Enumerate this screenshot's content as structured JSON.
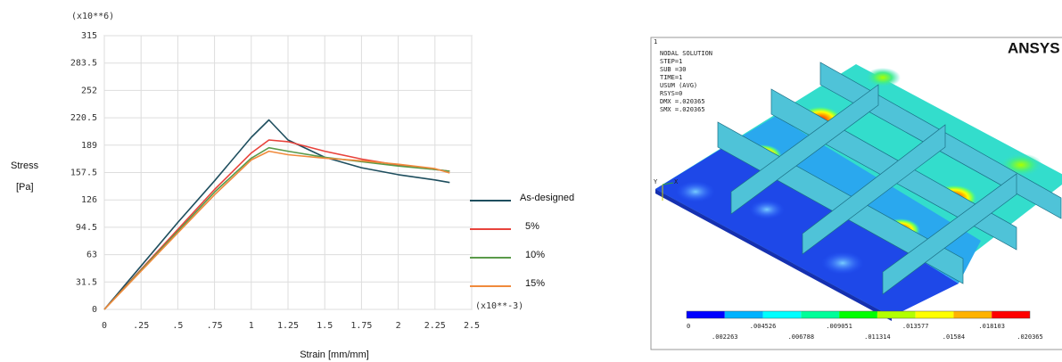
{
  "chart_data": {
    "type": "line",
    "y_multiplier": "(x10**6)",
    "x_multiplier": "(x10**-3)",
    "ylabel": [
      "Stress",
      "[Pa]"
    ],
    "xlabel": "Strain [mm/mm]",
    "x": [
      0,
      0.25,
      0.5,
      0.75,
      1.0,
      1.12,
      1.25,
      1.5,
      1.75,
      2.0,
      2.25,
      2.35
    ],
    "series": [
      {
        "name": "As-designed",
        "color": "#1e4e5e",
        "values": [
          0,
          50,
          100,
          148,
          198,
          218,
          195,
          175,
          163,
          155,
          149,
          146
        ]
      },
      {
        "name": "5%",
        "color": "#e8433c",
        "values": [
          0,
          46,
          92,
          138,
          180,
          195,
          193,
          182,
          173,
          166,
          161,
          159
        ]
      },
      {
        "name": "10%",
        "color": "#5a9a4a",
        "values": [
          0,
          45,
          90,
          135,
          174,
          186,
          182,
          175,
          170,
          165,
          161,
          159
        ]
      },
      {
        "name": "15%",
        "color": "#f08a3c",
        "values": [
          0,
          44,
          88,
          132,
          172,
          182,
          178,
          174,
          171,
          167,
          162,
          157
        ]
      }
    ],
    "xlim": [
      0,
      2.5
    ],
    "xticks": [
      0,
      {
        "value": 0.25,
        "label": ".25"
      },
      {
        "value": 0.5,
        "label": ".5"
      },
      {
        "value": 0.75,
        "label": ".75"
      },
      1,
      1.25,
      1.5,
      1.75,
      2,
      2.25,
      2.5
    ],
    "ylim": [
      0,
      315
    ],
    "yticks": [
      0,
      31.5,
      63,
      94.5,
      126,
      157.5,
      189,
      220.5,
      252,
      283.5,
      315
    ],
    "grid": true,
    "legend": "right"
  },
  "ansys_plot": {
    "logo": "ANSYS",
    "window": "1",
    "info": [
      "NODAL SOLUTION",
      "STEP=1",
      "SUB =30",
      "TIME=1",
      "USUM     (AVG)",
      "RSYS=0",
      "DMX =.020365",
      "SMX =.020365"
    ],
    "axes": [
      "Y",
      "X"
    ],
    "colorbar_labels": [
      "0",
      ".002263",
      ".004526",
      ".006788",
      ".009051",
      ".011314",
      ".013577",
      ".01584",
      ".018103",
      ".020365"
    ]
  }
}
